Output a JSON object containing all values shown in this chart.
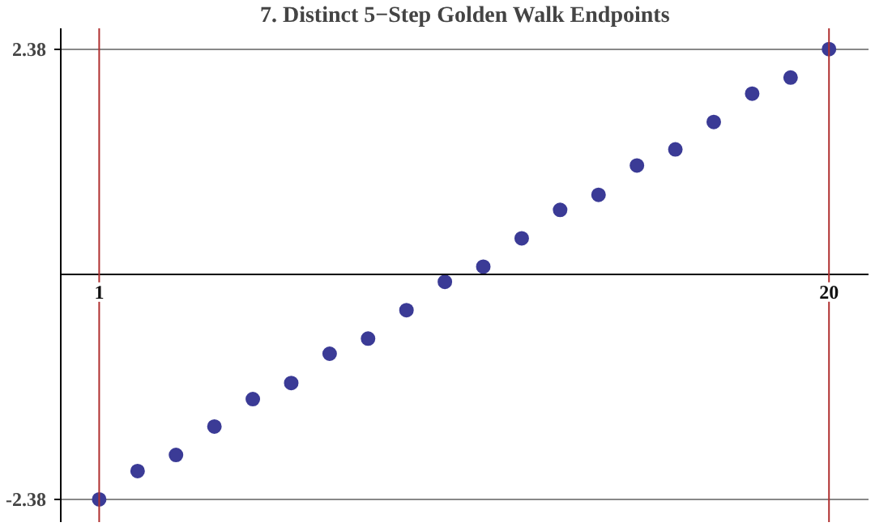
{
  "chart_data": {
    "type": "scatter",
    "title": "7. Distinct 5−Step Golden Walk Endpoints",
    "x": [
      1,
      2,
      3,
      4,
      5,
      6,
      7,
      8,
      9,
      10,
      11,
      12,
      13,
      14,
      15,
      16,
      17,
      18,
      19,
      20
    ],
    "values": [
      -2.38,
      -2.08,
      -1.91,
      -1.61,
      -1.32,
      -1.15,
      -0.84,
      -0.68,
      -0.38,
      -0.08,
      0.08,
      0.38,
      0.68,
      0.84,
      1.15,
      1.32,
      1.61,
      1.91,
      2.08,
      2.38
    ],
    "color": "#3b3b96",
    "marker": "circle",
    "xlim": [
      0,
      21.05
    ],
    "ylim": [
      -2.62,
      2.6
    ],
    "xticks": [
      1,
      20
    ],
    "yticks": [
      -2.38,
      2.38
    ],
    "grid": "y",
    "ref_lines": [
      {
        "axis": "x",
        "value": 1,
        "color": "#b03030"
      },
      {
        "axis": "x",
        "value": 20,
        "color": "#b03030"
      }
    ]
  }
}
